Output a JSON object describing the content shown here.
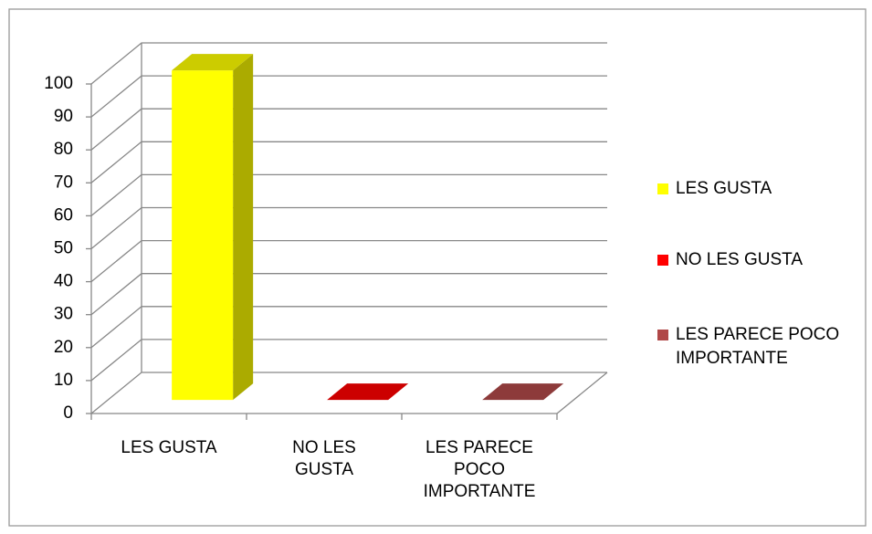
{
  "chart_data": {
    "type": "bar3d",
    "categories": [
      "LES GUSTA",
      "NO LES GUSTA",
      "LES PARECE POCO IMPORTANTE"
    ],
    "series": [
      {
        "name": "LES GUSTA",
        "color": "#ffff00",
        "values": [
          100,
          null,
          null
        ]
      },
      {
        "name": "NO LES GUSTA",
        "color": "#ff0000",
        "values": [
          null,
          0,
          null
        ]
      },
      {
        "name": "LES PARECE POCO IMPORTANTE",
        "color": "#b04848",
        "values": [
          null,
          null,
          0
        ]
      }
    ],
    "ylim": [
      0,
      100
    ],
    "yticks": [
      0,
      10,
      20,
      30,
      40,
      50,
      60,
      70,
      80,
      90,
      100
    ],
    "grid": true,
    "legend": "right"
  }
}
